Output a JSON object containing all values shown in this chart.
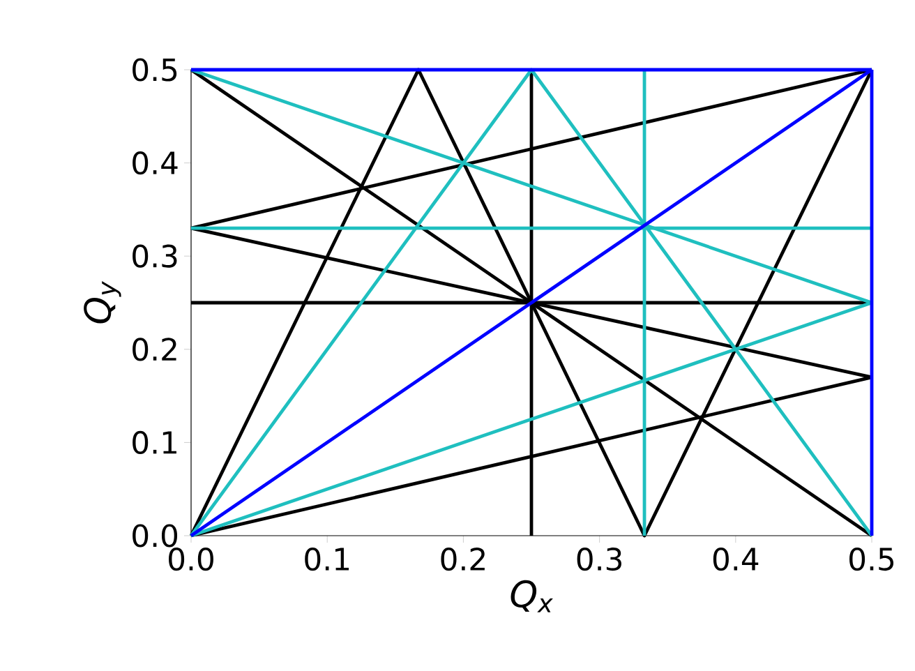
{
  "chart_data": {
    "type": "line",
    "xlabel": "Q$_{x}$",
    "ylabel": "Q$_{y}$",
    "xlim": [
      0,
      0.5
    ],
    "ylim": [
      0,
      0.5
    ],
    "xticks": [
      {
        "value": 0,
        "label": "0.0"
      },
      0.1,
      0.2,
      0.3,
      0.4,
      0.5
    ],
    "yticks": [
      {
        "value": 0,
        "label": "0.0"
      },
      0.1,
      0.2,
      0.3,
      0.4,
      0.5
    ],
    "grid": false,
    "marker": "none",
    "line_style": "solid",
    "series": [
      {
        "color": "#000000",
        "x": [
          0,
          0.167,
          0.333,
          0.5
        ],
        "values": [
          0,
          0.5,
          0,
          0.5
        ]
      },
      {
        "color": "#000000",
        "x": [
          0,
          0.5
        ],
        "values": [
          0.5,
          0
        ]
      },
      {
        "color": "#000000",
        "x": [
          0,
          0.5
        ],
        "values": [
          0.33,
          0.17
        ]
      },
      {
        "color": "#000000",
        "x": [
          0,
          0.5
        ],
        "values": [
          0.33,
          0.5
        ]
      },
      {
        "color": "#000000",
        "x": [
          0,
          0.5
        ],
        "values": [
          0,
          0.17
        ]
      },
      {
        "color": "#000000",
        "x": [
          0,
          0.5
        ],
        "values": [
          0.25,
          0.25
        ]
      },
      {
        "color": "#000000",
        "x": [
          0.25,
          0.25
        ],
        "values": [
          0,
          0.5
        ]
      },
      {
        "color": "#1fbfbf",
        "x": [
          0,
          0.25,
          0.5
        ],
        "values": [
          0,
          0.5,
          0
        ]
      },
      {
        "color": "#1fbfbf",
        "x": [
          0,
          0.5
        ],
        "values": [
          0.5,
          0.25
        ]
      },
      {
        "color": "#1fbfbf",
        "x": [
          0,
          0.5
        ],
        "values": [
          0,
          0.25
        ]
      },
      {
        "color": "#1fbfbf",
        "x": [
          0,
          0.5
        ],
        "values": [
          0.33,
          0.33
        ]
      },
      {
        "color": "#1fbfbf",
        "x": [
          0.333,
          0.333
        ],
        "values": [
          0,
          0.5
        ]
      },
      {
        "color": "#0000ff",
        "x": [
          0,
          0.5
        ],
        "values": [
          0,
          0.5
        ]
      },
      {
        "color": "#0000ff",
        "x": [
          0,
          0.5
        ],
        "values": [
          0.5,
          0.5
        ]
      },
      {
        "color": "#0000ff",
        "x": [
          0.5,
          0.5
        ],
        "values": [
          0.5,
          0
        ]
      }
    ]
  }
}
